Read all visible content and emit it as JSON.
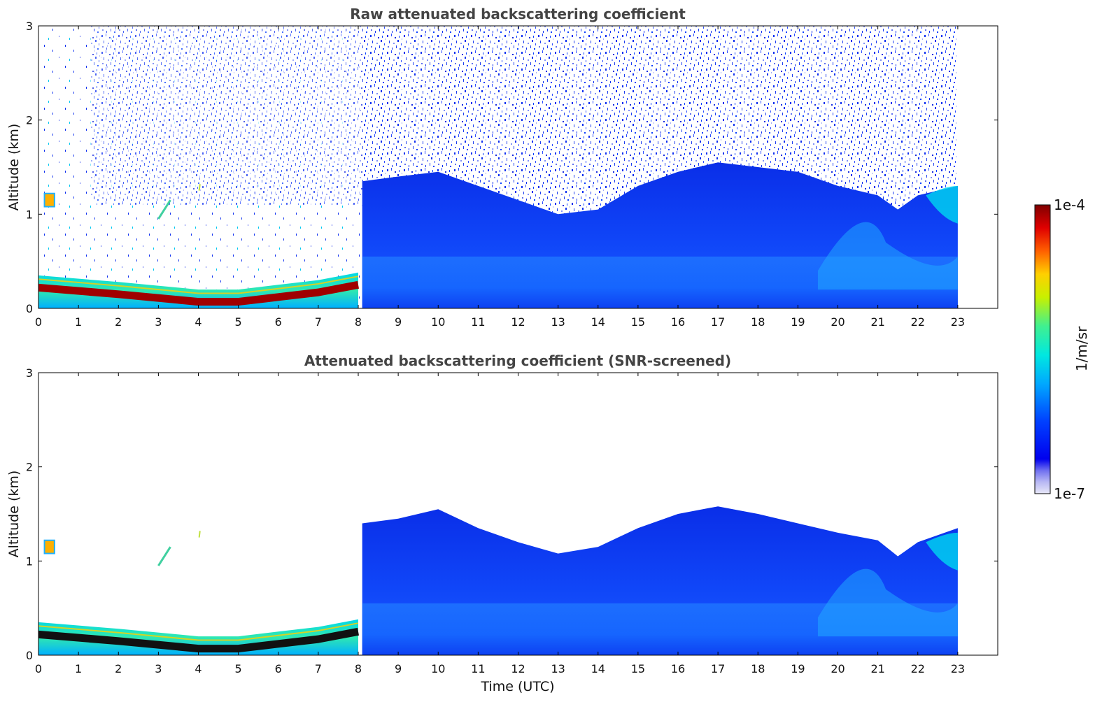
{
  "figure": {
    "panels": [
      {
        "title": "Raw attenuated backscattering coefficient",
        "ylabel": "Altitude (km)",
        "xlabel": ""
      },
      {
        "title": "Attenuated backscattering coefficient (SNR-screened)",
        "ylabel": "Altitude (km)",
        "xlabel": "Time (UTC)"
      }
    ],
    "colorbar": {
      "label": "1/m/sr",
      "max_label": "1e-4",
      "min_label": "1e-7",
      "scale": "log"
    }
  },
  "chart_data": [
    {
      "type": "heatmap",
      "title": "Raw attenuated backscattering coefficient",
      "xlabel": "",
      "ylabel": "Altitude (km)",
      "xlim": [
        0,
        24
      ],
      "ylim": [
        0,
        3
      ],
      "x_ticks": [
        "0",
        "1",
        "2",
        "3",
        "4",
        "5",
        "6",
        "7",
        "8",
        "9",
        "10",
        "11",
        "12",
        "13",
        "14",
        "15",
        "16",
        "17",
        "18",
        "19",
        "20",
        "21",
        "22",
        "23"
      ],
      "y_ticks": [
        "0",
        "1",
        "2",
        "3"
      ],
      "data_time_range_utc": [
        0,
        23
      ],
      "value_units": "1/m/sr",
      "colormap": "jet (log scale)",
      "color_range": [
        1e-07,
        0.0001
      ],
      "features": {
        "surface_layer_top_km": [
          {
            "t": 0,
            "z": 0.35
          },
          {
            "t": 2,
            "z": 0.28
          },
          {
            "t": 4,
            "z": 0.2
          },
          {
            "t": 5,
            "z": 0.2
          },
          {
            "t": 6,
            "z": 0.25
          },
          {
            "t": 7,
            "z": 0.3
          },
          {
            "t": 8,
            "z": 0.38
          }
        ],
        "boundary_layer_top_km": [
          {
            "t": 8.1,
            "z": 1.35
          },
          {
            "t": 9,
            "z": 1.4
          },
          {
            "t": 10,
            "z": 1.45
          },
          {
            "t": 11,
            "z": 1.3
          },
          {
            "t": 12,
            "z": 1.15
          },
          {
            "t": 13,
            "z": 1.0
          },
          {
            "t": 14,
            "z": 1.05
          },
          {
            "t": 15,
            "z": 1.3
          },
          {
            "t": 16,
            "z": 1.45
          },
          {
            "t": 17,
            "z": 1.55
          },
          {
            "t": 18,
            "z": 1.5
          },
          {
            "t": 19,
            "z": 1.45
          },
          {
            "t": 20,
            "z": 1.3
          },
          {
            "t": 21,
            "z": 1.2
          },
          {
            "t": 21.5,
            "z": 1.05
          },
          {
            "t": 22,
            "z": 1.2
          },
          {
            "t": 23,
            "z": 1.3
          }
        ],
        "noise_above_boundary_layer": true
      }
    },
    {
      "type": "heatmap",
      "title": "Attenuated backscattering coefficient (SNR-screened)",
      "xlabel": "Time (UTC)",
      "ylabel": "Altitude (km)",
      "xlim": [
        0,
        24
      ],
      "ylim": [
        0,
        3
      ],
      "x_ticks": [
        "0",
        "1",
        "2",
        "3",
        "4",
        "5",
        "6",
        "7",
        "8",
        "9",
        "10",
        "11",
        "12",
        "13",
        "14",
        "15",
        "16",
        "17",
        "18",
        "19",
        "20",
        "21",
        "22",
        "23"
      ],
      "y_ticks": [
        "0",
        "1",
        "2",
        "3"
      ],
      "data_time_range_utc": [
        0,
        23
      ],
      "value_units": "1/m/sr",
      "colormap": "jet (log scale)",
      "color_range": [
        1e-07,
        0.0001
      ],
      "features": {
        "surface_layer_top_km": [
          {
            "t": 0,
            "z": 0.35
          },
          {
            "t": 2,
            "z": 0.28
          },
          {
            "t": 4,
            "z": 0.2
          },
          {
            "t": 5,
            "z": 0.2
          },
          {
            "t": 6,
            "z": 0.25
          },
          {
            "t": 7,
            "z": 0.3
          },
          {
            "t": 8,
            "z": 0.38
          }
        ],
        "boundary_layer_top_km": [
          {
            "t": 8.1,
            "z": 1.4
          },
          {
            "t": 9,
            "z": 1.45
          },
          {
            "t": 10,
            "z": 1.55
          },
          {
            "t": 11,
            "z": 1.35
          },
          {
            "t": 12,
            "z": 1.2
          },
          {
            "t": 13,
            "z": 1.08
          },
          {
            "t": 14,
            "z": 1.15
          },
          {
            "t": 15,
            "z": 1.35
          },
          {
            "t": 16,
            "z": 1.5
          },
          {
            "t": 17,
            "z": 1.58
          },
          {
            "t": 18,
            "z": 1.5
          },
          {
            "t": 19,
            "z": 1.4
          },
          {
            "t": 20,
            "z": 1.3
          },
          {
            "t": 21,
            "z": 1.22
          },
          {
            "t": 21.5,
            "z": 1.05
          },
          {
            "t": 22,
            "z": 1.2
          },
          {
            "t": 23,
            "z": 1.35
          }
        ],
        "noise_above_boundary_layer": false
      }
    }
  ]
}
